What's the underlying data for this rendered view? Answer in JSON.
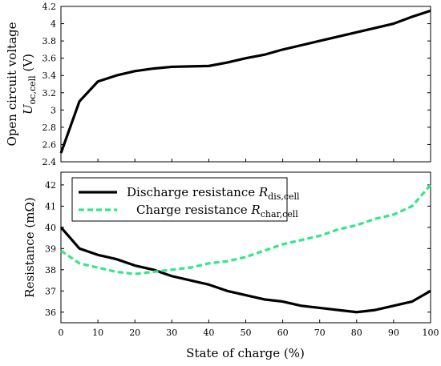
{
  "chart_data": [
    {
      "type": "line",
      "ylabel_line1": "Open circuit voltage",
      "ylabel_symbol": "U",
      "ylabel_subscript": "oc,cell",
      "ylabel_unit": " (V)",
      "xlim": [
        0,
        100
      ],
      "ylim": [
        2.4,
        4.2
      ],
      "yticks": [
        "2.4",
        "2.6",
        "2.8",
        "3",
        "3.2",
        "3.4",
        "3.6",
        "3.8",
        "4",
        "4.2"
      ],
      "grid": false,
      "series": [
        {
          "color": "#000000",
          "x": [
            0,
            5,
            10,
            15,
            20,
            25,
            30,
            35,
            40,
            45,
            50,
            55,
            60,
            65,
            70,
            75,
            80,
            85,
            90,
            95,
            100
          ],
          "values": [
            2.5,
            3.1,
            3.33,
            3.4,
            3.45,
            3.48,
            3.5,
            3.505,
            3.51,
            3.55,
            3.6,
            3.64,
            3.7,
            3.75,
            3.8,
            3.85,
            3.9,
            3.95,
            4.0,
            4.08,
            4.15
          ]
        }
      ]
    },
    {
      "type": "line",
      "ylabel": "Resistance (mΩ)",
      "xlabel": "State of charge (%)",
      "xlim": [
        0,
        100
      ],
      "ylim": [
        35.5,
        42.6
      ],
      "xticks": [
        "0",
        "10",
        "20",
        "30",
        "40",
        "50",
        "60",
        "70",
        "80",
        "90",
        "100"
      ],
      "yticks": [
        "36",
        "37",
        "38",
        "39",
        "40",
        "41",
        "42"
      ],
      "grid": false,
      "legend_position": "top-left",
      "series": [
        {
          "name_text": "Discharge resistance ",
          "name_symbol": "R",
          "name_subscript": "dis,cell",
          "color": "#000000",
          "style": "solid",
          "x": [
            0,
            5,
            10,
            15,
            20,
            25,
            30,
            35,
            40,
            45,
            50,
            55,
            60,
            65,
            70,
            75,
            80,
            85,
            90,
            95,
            100
          ],
          "values": [
            40.0,
            39.0,
            38.7,
            38.5,
            38.2,
            38.0,
            37.7,
            37.5,
            37.3,
            37.0,
            36.8,
            36.6,
            36.5,
            36.3,
            36.2,
            36.1,
            36.0,
            36.1,
            36.3,
            36.5,
            37.0
          ]
        },
        {
          "name_text": "Charge resistance ",
          "name_symbol": "R",
          "name_subscript": "char,cell",
          "color": "#33e68c",
          "style": "dashed",
          "x": [
            0,
            5,
            10,
            15,
            20,
            25,
            30,
            35,
            40,
            45,
            50,
            55,
            60,
            65,
            70,
            75,
            80,
            85,
            90,
            95,
            100
          ],
          "values": [
            38.9,
            38.3,
            38.1,
            37.9,
            37.8,
            37.9,
            38.0,
            38.1,
            38.3,
            38.4,
            38.6,
            38.9,
            39.2,
            39.4,
            39.6,
            39.9,
            40.1,
            40.4,
            40.6,
            41.0,
            42.0
          ]
        }
      ]
    }
  ]
}
